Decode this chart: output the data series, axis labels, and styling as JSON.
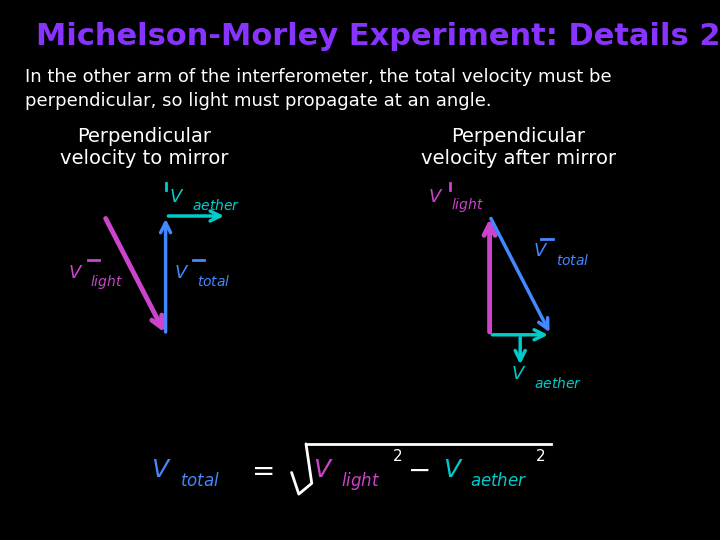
{
  "title": "Michelson-Morley Experiment: Details 2",
  "title_color": "#8833ff",
  "title_fontsize": 22,
  "bg_color": "#000000",
  "body_text": "In the other arm of the interferometer, the total velocity must be\nperpendicular, so light must propagate at an angle.",
  "body_color": "#ffffff",
  "body_fontsize": 13,
  "left_label": "Perpendicular\nvelocity to mirror",
  "right_label": "Perpendicular\nvelocity after mirror",
  "label_color": "#ffffff",
  "label_fontsize": 14,
  "color_aether": "#00cccc",
  "color_light": "#cc44cc",
  "color_total": "#4488ff",
  "formula_vtotal_color": "#4488ff",
  "formula_vlight_color": "#cc44cc",
  "formula_vaether_color": "#00cccc"
}
